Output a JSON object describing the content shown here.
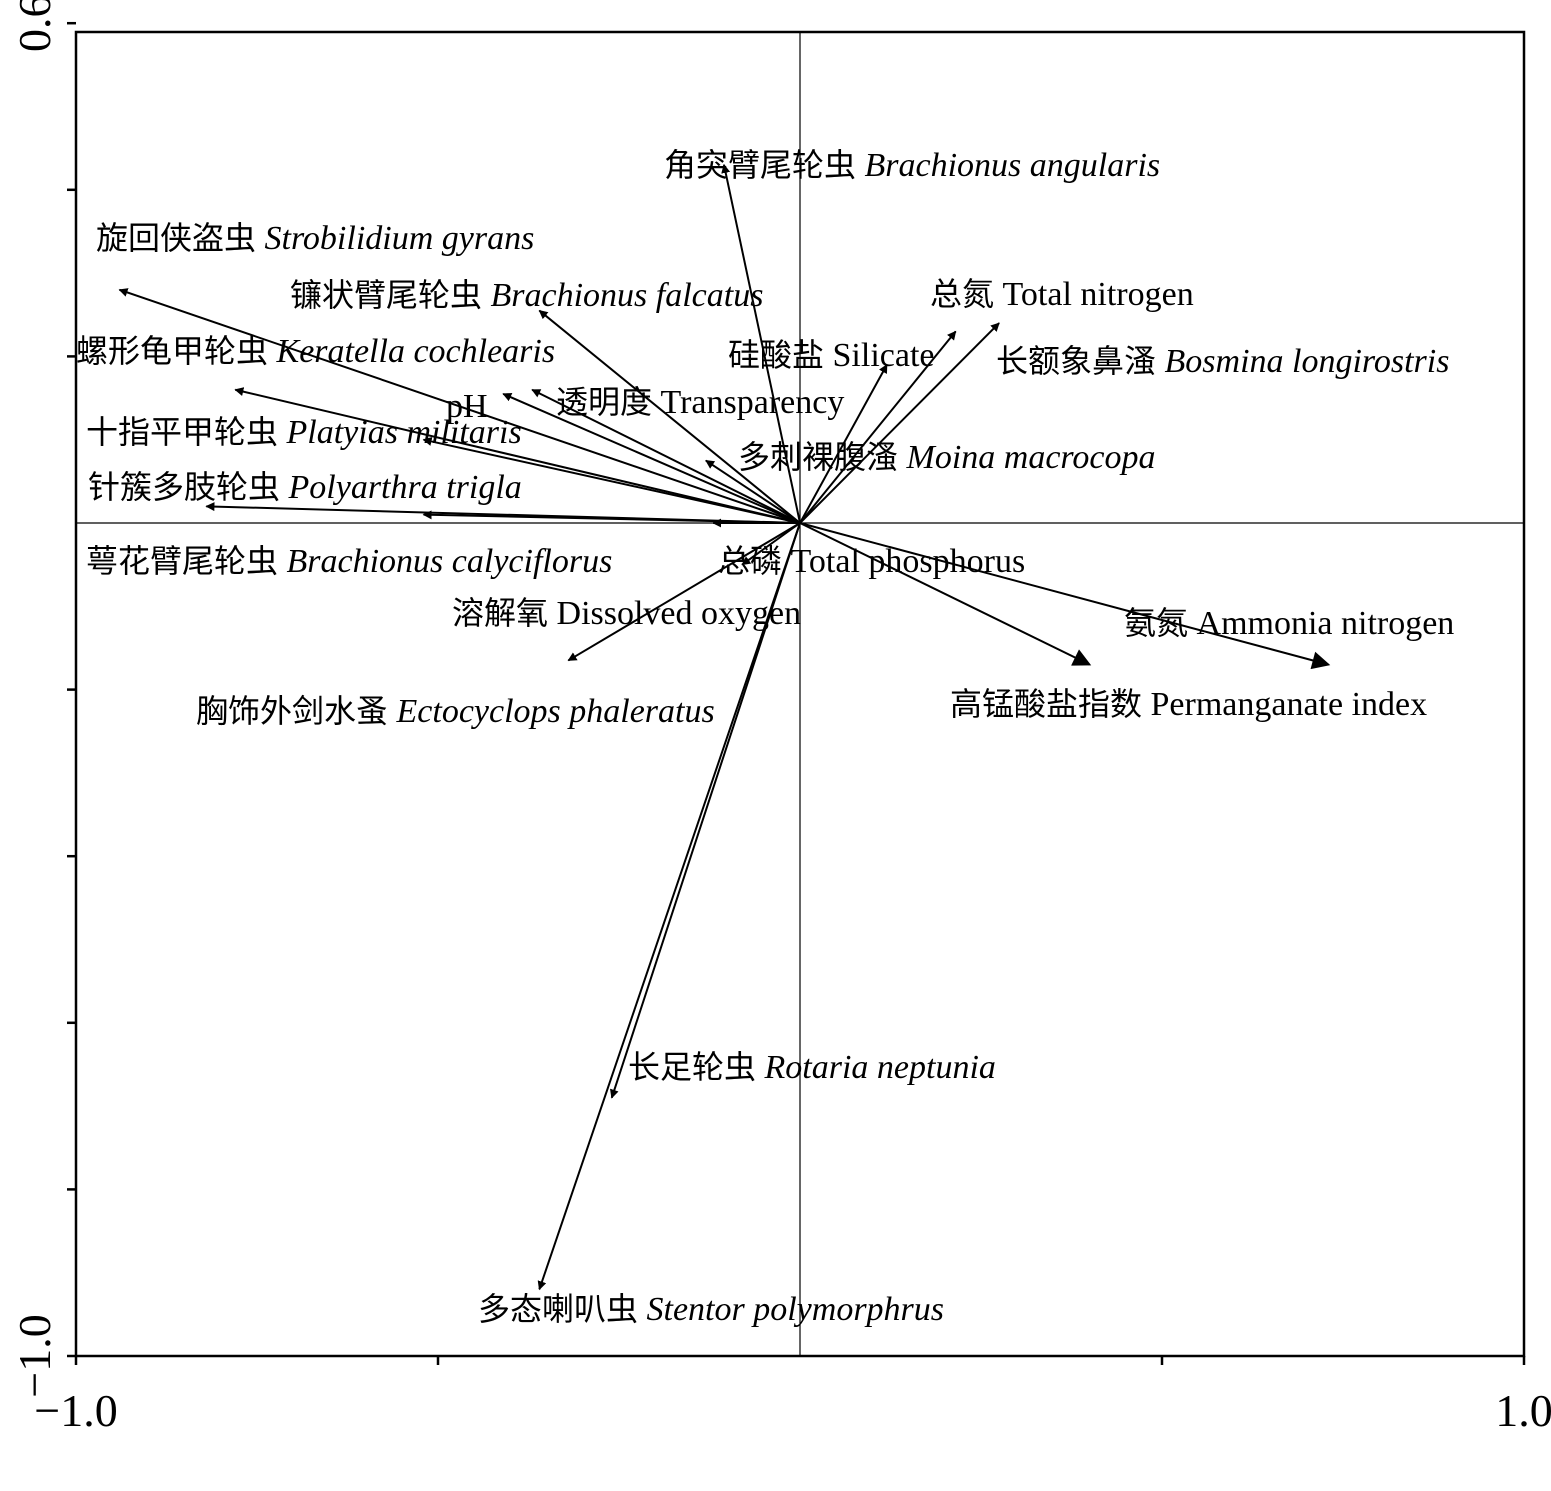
{
  "chart_data": {
    "type": "scatter",
    "subtype": "biplot-arrows",
    "xlim": [
      -1.0,
      1.0
    ],
    "ylim": [
      -1.0,
      0.6
    ],
    "xticks": [
      -1.0,
      -0.5,
      0.5,
      1.0
    ],
    "yticks": [
      0.6,
      0.4,
      0.2,
      -0.2,
      -0.4,
      -0.6,
      -0.8,
      -1.0
    ],
    "xtick_labels": [
      {
        "value": -1.0,
        "label": "−1.0"
      },
      {
        "value": 1.0,
        "label": "1.0"
      }
    ],
    "ytick_labels": [
      {
        "value": 0.6,
        "label": "0.6"
      },
      {
        "value": -1.0,
        "label": "−1.0"
      }
    ],
    "zero_lines": true,
    "grid": false,
    "arrows": [
      {
        "cn": "旋回侠盗虫",
        "sp": "Strobilidium gyrans",
        "italic": true,
        "x": -0.94,
        "y": 0.28
      },
      {
        "cn": "螺形龟甲轮虫",
        "sp": "Keratella cochlearis",
        "italic": true,
        "x": -0.78,
        "y": 0.16
      },
      {
        "cn": "十指平甲轮虫",
        "sp": "Platyias militaris",
        "italic": true,
        "x": -0.52,
        "y": 0.1
      },
      {
        "cn": "针簇多肢轮虫",
        "sp": "Polyarthra trigla",
        "italic": true,
        "x": -0.82,
        "y": 0.02
      },
      {
        "cn": "萼花臂尾轮虫",
        "sp": "Brachionus calyciflorus",
        "italic": true,
        "x": -0.52,
        "y": 0.01
      },
      {
        "cn": "镰状臂尾轮虫",
        "sp": "Brachionus falcatus",
        "italic": true,
        "x": -0.36,
        "y": 0.255
      },
      {
        "cn": "",
        "sp": "pH",
        "italic": false,
        "x": -0.41,
        "y": 0.155
      },
      {
        "cn": "透明度",
        "sp": "Transparency",
        "italic": false,
        "x": -0.37,
        "y": 0.16
      },
      {
        "cn": "角突臂尾轮虫",
        "sp": "Brachionus angularis",
        "italic": true,
        "x": -0.105,
        "y": 0.43
      },
      {
        "cn": "多刺裸腹溞",
        "sp": "Moina macrocopa",
        "italic": true,
        "x": -0.13,
        "y": 0.075
      },
      {
        "cn": "硅酸盐",
        "sp": "Silicate",
        "italic": false,
        "x": 0.215,
        "y": 0.23
      },
      {
        "cn": "总氮",
        "sp": "Total nitrogen",
        "italic": false,
        "x": 0.275,
        "y": 0.24
      },
      {
        "cn": "长额象鼻溞",
        "sp": "Bosmina longirostris",
        "italic": true,
        "x": 0.12,
        "y": 0.19
      },
      {
        "cn": "总磷",
        "sp": "Total phosphorus",
        "italic": false,
        "x": -0.12,
        "y": 0.0
      },
      {
        "cn": "溶解氧",
        "sp": "Dissolved oxygen",
        "italic": false,
        "x": -0.32,
        "y": -0.165
      },
      {
        "cn": "氨氮",
        "sp": "Ammonia nitrogen",
        "italic": false,
        "x": 0.73,
        "y": -0.17
      },
      {
        "cn": "高锰酸盐指数",
        "sp": "Permanganate index",
        "italic": false,
        "x": 0.4,
        "y": -0.17
      },
      {
        "cn": "胸饰外剑水蚤",
        "sp": "Ectocyclops phaleratus",
        "italic": true,
        "x": -0.08,
        "y": -0.05
      },
      {
        "cn": "长足轮虫",
        "sp": "Rotaria neptunia",
        "italic": true,
        "x": -0.26,
        "y": -0.69
      },
      {
        "cn": "多态喇叭虫",
        "sp": "Stentor polymorphrus",
        "italic": true,
        "x": -0.36,
        "y": -0.92
      }
    ]
  },
  "labels": [
    {
      "cn": "旋回侠盗虫",
      "sp": "Strobilidium gyrans",
      "italic": true
    },
    {
      "cn": "镰状臂尾轮虫",
      "sp": "Brachionus falcatus",
      "italic": true
    },
    {
      "cn": "螺形龟甲轮虫",
      "sp": "Keratella cochlearis",
      "italic": true
    },
    {
      "cn": "",
      "sp": "pH",
      "italic": false
    },
    {
      "cn": "透明度",
      "sp": "Transparency",
      "italic": false
    },
    {
      "cn": "十指平甲轮虫",
      "sp": "Platyias militaris",
      "italic": true
    },
    {
      "cn": "针簇多肢轮虫",
      "sp": "Polyarthra trigla",
      "italic": true
    },
    {
      "cn": "萼花臂尾轮虫",
      "sp": "Brachionus calyciflorus",
      "italic": true
    },
    {
      "cn": "总磷",
      "sp": "Total phosphorus",
      "italic": false
    },
    {
      "cn": "溶解氧",
      "sp": "Dissolved oxygen",
      "italic": false
    },
    {
      "cn": "胸饰外剑水蚤",
      "sp": "Ectocyclops phaleratus",
      "italic": true
    },
    {
      "cn": "角突臂尾轮虫",
      "sp": "Brachionus angularis",
      "italic": true
    },
    {
      "cn": "总氮",
      "sp": "Total nitrogen",
      "italic": false
    },
    {
      "cn": "硅酸盐",
      "sp": "Silicate",
      "italic": false
    },
    {
      "cn": "长额象鼻溞",
      "sp": "Bosmina longirostris",
      "italic": true
    },
    {
      "cn": "多刺裸腹溞",
      "sp": "Moina macrocopa",
      "italic": true
    },
    {
      "cn": "氨氮",
      "sp": "Ammonia nitrogen",
      "italic": false
    },
    {
      "cn": "高锰酸盐指数",
      "sp": "Permanganate index",
      "italic": false
    },
    {
      "cn": "长足轮虫",
      "sp": "Rotaria neptunia",
      "italic": true
    },
    {
      "cn": "多态喇叭虫",
      "sp": "Stentor polymorphrus",
      "italic": true
    }
  ]
}
